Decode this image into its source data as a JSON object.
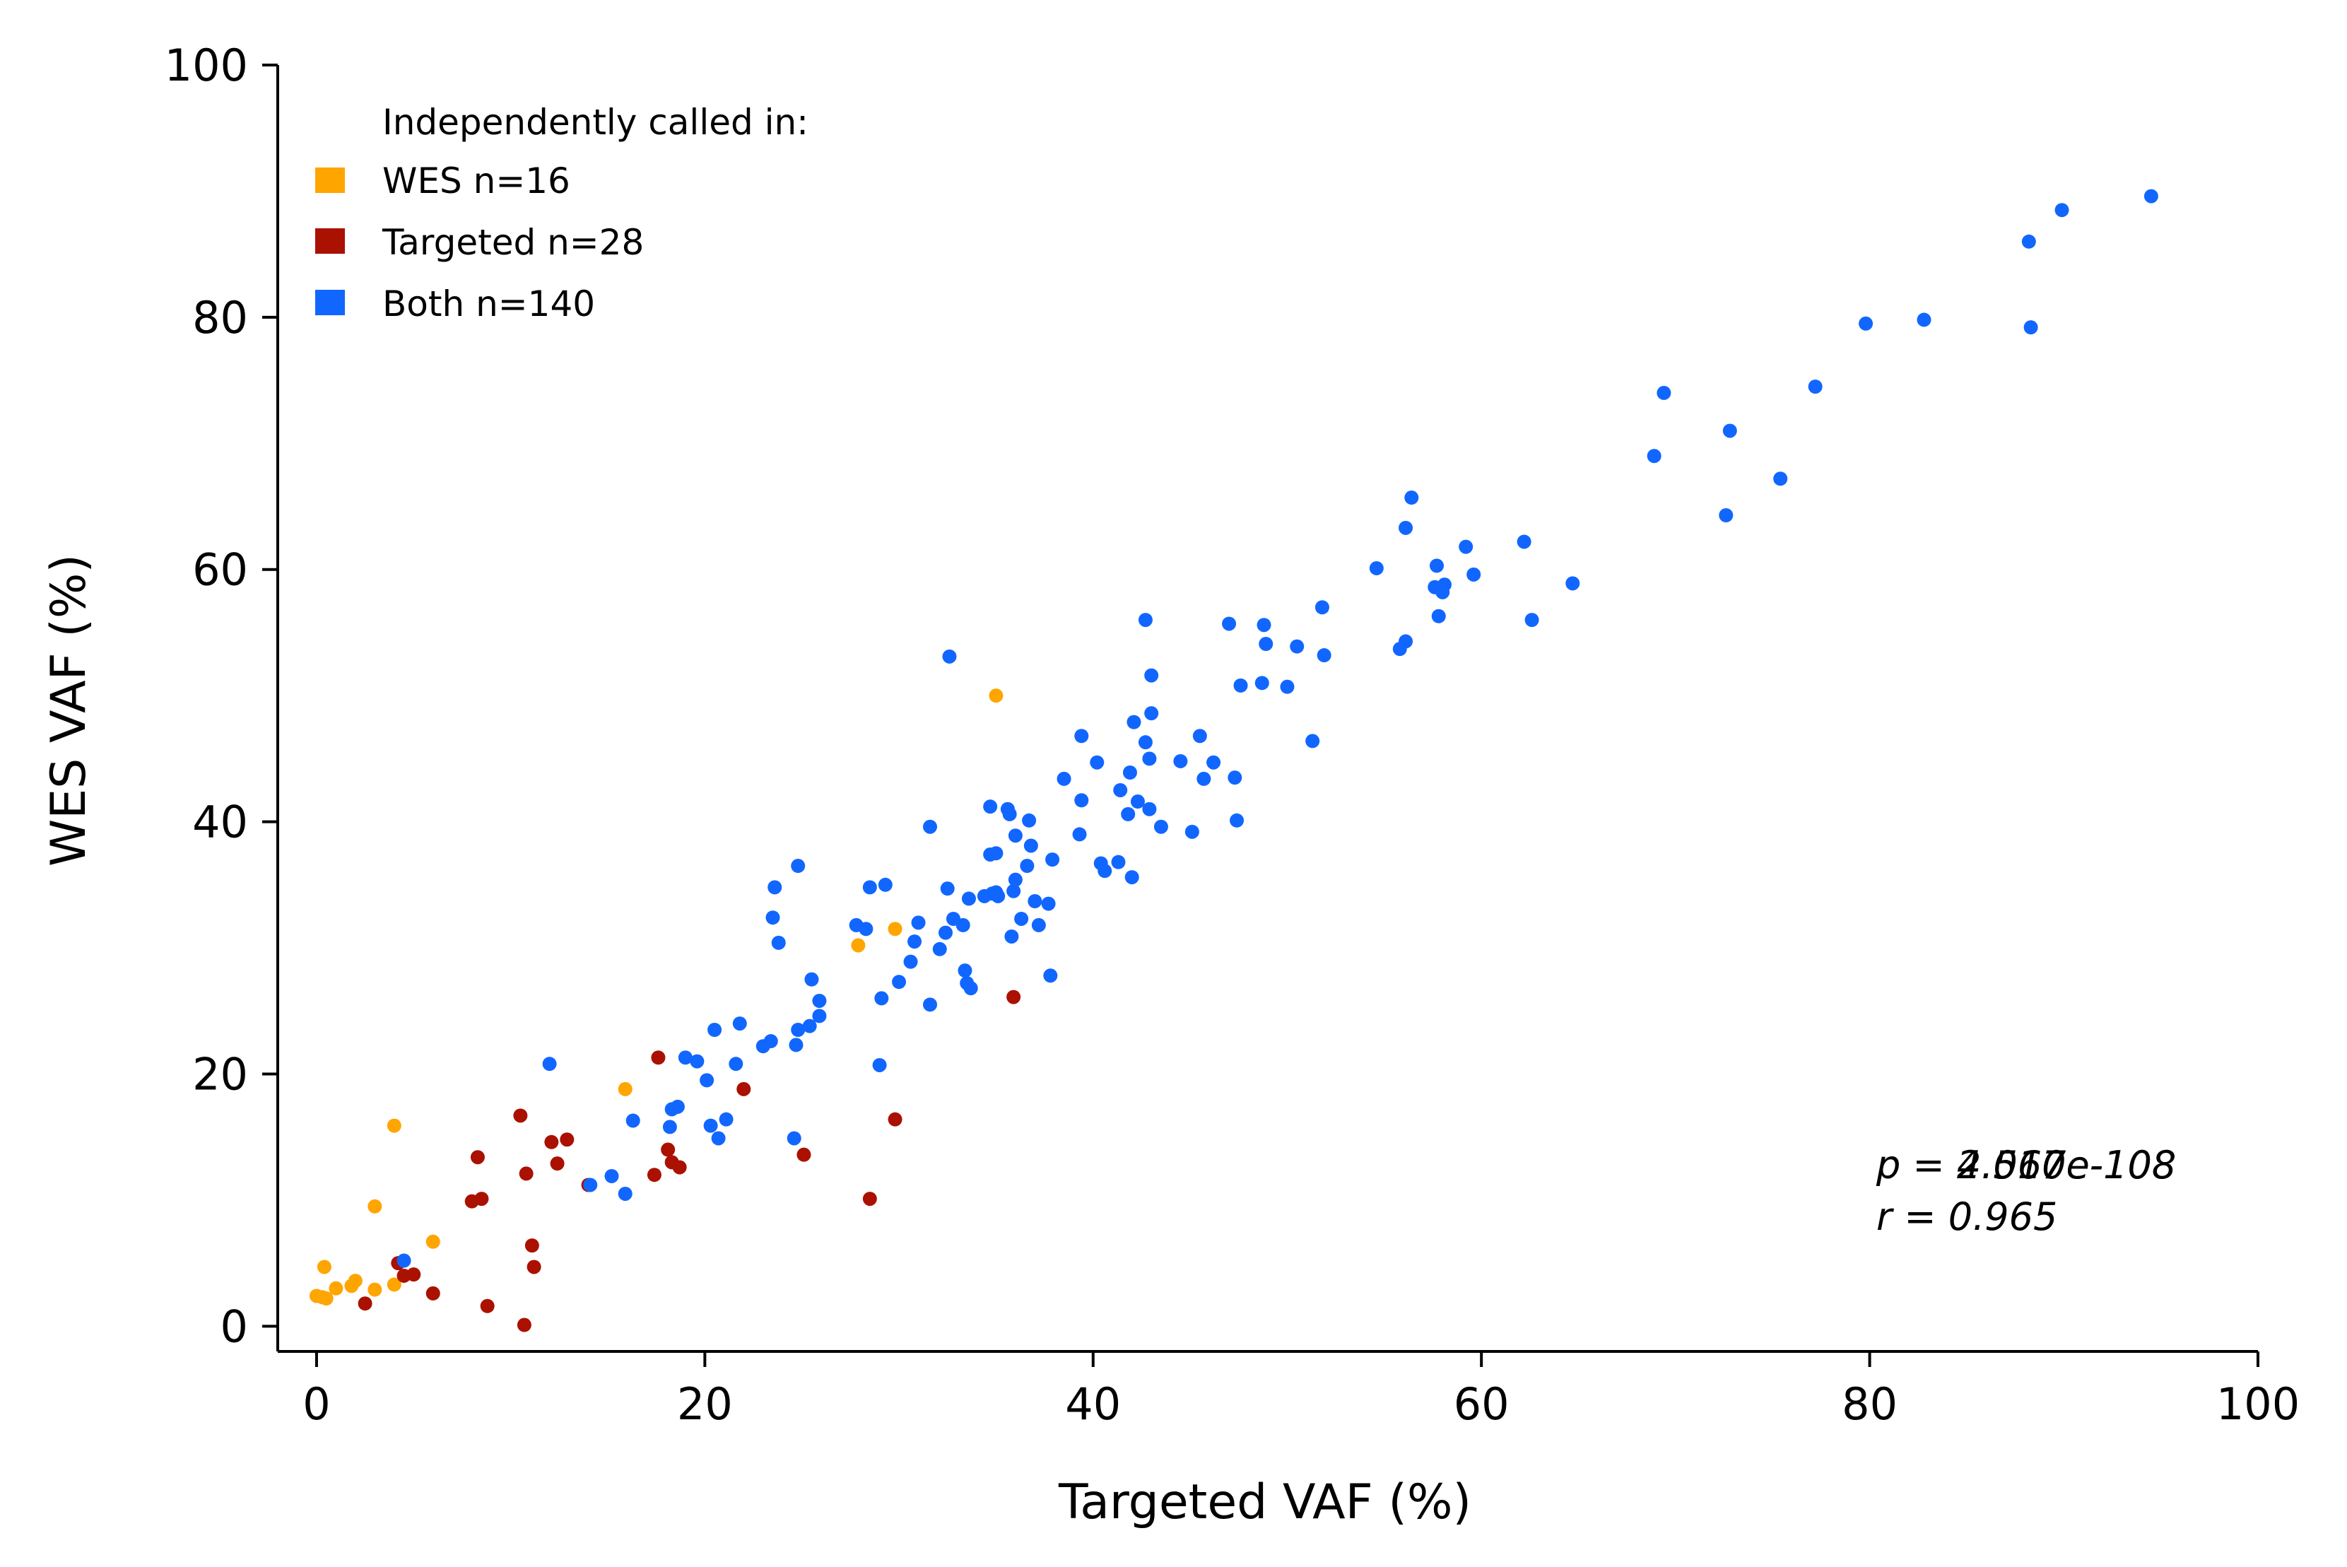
{
  "chart_data": {
    "type": "scatter",
    "title": "",
    "xlabel": "Targeted VAF (%)",
    "ylabel": "WES VAF (%)",
    "xlim": [
      -2,
      100
    ],
    "ylim": [
      -2,
      100
    ],
    "xticks": [
      0,
      20,
      40,
      60,
      80,
      100
    ],
    "yticks": [
      0,
      20,
      40,
      60,
      80,
      100
    ],
    "grid": false,
    "legend": {
      "placement": "top-left",
      "title": "Independently called in:",
      "entries": [
        {
          "label": "WES  n=16",
          "series": "WES"
        },
        {
          "label": "Targeted  n=28",
          "series": "Targeted"
        },
        {
          "label": "Both  n=140",
          "series": "Both"
        }
      ]
    },
    "annotations": {
      "p_overlap_a": "p = 4.567e-108",
      "p_overlap_b": "p = 2.010e-108",
      "r_text": "r = 0.965"
    },
    "colors": {
      "WES": "#ffa500",
      "Targeted": "#aa1100",
      "Both": "#1166ff"
    },
    "series": [
      {
        "name": "WES",
        "points": [
          [
            0.0,
            2.4
          ],
          [
            0.3,
            2.3
          ],
          [
            0.4,
            4.7
          ],
          [
            1.0,
            3.0
          ],
          [
            2.0,
            3.6
          ],
          [
            3.0,
            2.9
          ],
          [
            3.0,
            9.5
          ],
          [
            4.0,
            15.9
          ],
          [
            4.0,
            3.3
          ],
          [
            6.0,
            6.7
          ],
          [
            15.9,
            18.8
          ],
          [
            27.9,
            30.2
          ],
          [
            29.8,
            31.5
          ],
          [
            35.0,
            50.0
          ],
          [
            0.5,
            2.2
          ],
          [
            1.8,
            3.2
          ]
        ]
      },
      {
        "name": "Targeted",
        "points": [
          [
            2.5,
            1.8
          ],
          [
            4.2,
            5.0
          ],
          [
            4.5,
            4.0
          ],
          [
            5.0,
            4.1
          ],
          [
            6.0,
            2.6
          ],
          [
            8.0,
            9.9
          ],
          [
            8.3,
            13.4
          ],
          [
            8.5,
            10.1
          ],
          [
            8.8,
            1.6
          ],
          [
            10.5,
            16.7
          ],
          [
            10.7,
            0.1
          ],
          [
            10.8,
            12.1
          ],
          [
            11.1,
            6.4
          ],
          [
            11.2,
            4.7
          ],
          [
            12.1,
            14.6
          ],
          [
            12.4,
            12.9
          ],
          [
            12.9,
            14.8
          ],
          [
            14.0,
            11.2
          ],
          [
            17.4,
            12.0
          ],
          [
            17.6,
            21.3
          ],
          [
            18.1,
            14.0
          ],
          [
            18.3,
            13.0
          ],
          [
            18.7,
            12.6
          ],
          [
            22.0,
            18.8
          ],
          [
            25.1,
            13.6
          ],
          [
            28.5,
            10.1
          ],
          [
            29.8,
            16.4
          ],
          [
            35.9,
            26.1
          ]
        ]
      },
      {
        "name": "Both",
        "points": [
          [
            4.5,
            5.2
          ],
          [
            12.0,
            20.8
          ],
          [
            14.1,
            11.2
          ],
          [
            15.2,
            11.9
          ],
          [
            15.9,
            10.5
          ],
          [
            16.3,
            16.3
          ],
          [
            18.2,
            15.8
          ],
          [
            18.3,
            17.2
          ],
          [
            18.6,
            17.4
          ],
          [
            19.0,
            21.3
          ],
          [
            19.6,
            21.0
          ],
          [
            20.1,
            19.5
          ],
          [
            20.3,
            15.9
          ],
          [
            20.5,
            23.5
          ],
          [
            20.7,
            14.9
          ],
          [
            21.1,
            16.4
          ],
          [
            21.6,
            20.8
          ],
          [
            21.8,
            24.0
          ],
          [
            23.0,
            22.2
          ],
          [
            23.4,
            22.6
          ],
          [
            23.5,
            32.4
          ],
          [
            23.6,
            34.8
          ],
          [
            23.8,
            30.4
          ],
          [
            24.6,
            14.9
          ],
          [
            24.7,
            22.3
          ],
          [
            24.8,
            23.5
          ],
          [
            24.8,
            36.5
          ],
          [
            25.4,
            23.8
          ],
          [
            25.5,
            27.5
          ],
          [
            25.9,
            24.6
          ],
          [
            25.9,
            25.8
          ],
          [
            27.8,
            31.8
          ],
          [
            28.3,
            31.5
          ],
          [
            28.5,
            34.8
          ],
          [
            29.0,
            20.7
          ],
          [
            29.1,
            26.0
          ],
          [
            29.3,
            35.0
          ],
          [
            30.0,
            27.3
          ],
          [
            30.6,
            28.9
          ],
          [
            30.8,
            30.5
          ],
          [
            31.0,
            32.0
          ],
          [
            31.6,
            25.5
          ],
          [
            31.6,
            39.6
          ],
          [
            32.1,
            29.9
          ],
          [
            32.4,
            31.2
          ],
          [
            32.5,
            34.7
          ],
          [
            32.6,
            53.1
          ],
          [
            32.8,
            32.3
          ],
          [
            33.3,
            31.8
          ],
          [
            33.4,
            28.2
          ],
          [
            33.5,
            27.2
          ],
          [
            33.6,
            33.9
          ],
          [
            33.7,
            26.8
          ],
          [
            34.4,
            34.1
          ],
          [
            34.7,
            37.4
          ],
          [
            34.7,
            41.2
          ],
          [
            34.8,
            34.3
          ],
          [
            35.0,
            34.4
          ],
          [
            35.0,
            37.5
          ],
          [
            35.1,
            34.1
          ],
          [
            35.6,
            41.0
          ],
          [
            35.7,
            40.6
          ],
          [
            35.8,
            30.9
          ],
          [
            35.9,
            34.5
          ],
          [
            36.0,
            35.4
          ],
          [
            36.0,
            38.9
          ],
          [
            36.3,
            32.3
          ],
          [
            36.6,
            36.5
          ],
          [
            36.7,
            40.1
          ],
          [
            36.8,
            38.1
          ],
          [
            37.0,
            33.7
          ],
          [
            37.2,
            31.8
          ],
          [
            37.7,
            33.5
          ],
          [
            37.8,
            27.8
          ],
          [
            37.9,
            37.0
          ],
          [
            38.5,
            43.4
          ],
          [
            39.3,
            39.0
          ],
          [
            39.4,
            46.8
          ],
          [
            39.4,
            41.7
          ],
          [
            40.2,
            44.7
          ],
          [
            40.4,
            36.7
          ],
          [
            40.6,
            36.1
          ],
          [
            41.3,
            36.8
          ],
          [
            41.4,
            42.5
          ],
          [
            41.8,
            40.6
          ],
          [
            41.9,
            43.9
          ],
          [
            42.0,
            35.6
          ],
          [
            42.1,
            47.9
          ],
          [
            42.3,
            41.6
          ],
          [
            42.7,
            56.0
          ],
          [
            42.7,
            46.3
          ],
          [
            42.9,
            41.0
          ],
          [
            42.9,
            45.0
          ],
          [
            43.0,
            48.6
          ],
          [
            43.0,
            51.6
          ],
          [
            43.5,
            39.6
          ],
          [
            44.5,
            44.8
          ],
          [
            45.1,
            39.2
          ],
          [
            45.5,
            46.8
          ],
          [
            45.7,
            43.4
          ],
          [
            46.2,
            44.7
          ],
          [
            47.0,
            55.7
          ],
          [
            47.3,
            43.5
          ],
          [
            47.4,
            40.1
          ],
          [
            47.6,
            50.8
          ],
          [
            48.7,
            51.0
          ],
          [
            48.8,
            55.6
          ],
          [
            48.9,
            54.1
          ],
          [
            50.0,
            50.7
          ],
          [
            50.5,
            53.9
          ],
          [
            51.3,
            46.4
          ],
          [
            51.8,
            57.0
          ],
          [
            51.9,
            53.2
          ],
          [
            54.6,
            60.1
          ],
          [
            55.8,
            53.7
          ],
          [
            56.1,
            54.3
          ],
          [
            56.1,
            63.3
          ],
          [
            56.4,
            65.7
          ],
          [
            57.6,
            58.6
          ],
          [
            57.7,
            60.3
          ],
          [
            57.8,
            56.3
          ],
          [
            58.1,
            58.8
          ],
          [
            59.2,
            61.8
          ],
          [
            59.6,
            59.6
          ],
          [
            62.2,
            62.2
          ],
          [
            62.6,
            56.0
          ],
          [
            64.7,
            58.9
          ],
          [
            68.9,
            69.0
          ],
          [
            69.4,
            74.0
          ],
          [
            72.6,
            64.3
          ],
          [
            72.8,
            71.0
          ],
          [
            75.4,
            67.2
          ],
          [
            77.2,
            74.5
          ],
          [
            79.8,
            79.5
          ],
          [
            82.8,
            79.8
          ],
          [
            88.2,
            86.0
          ],
          [
            88.3,
            79.2
          ],
          [
            89.9,
            88.5
          ],
          [
            94.5,
            89.6
          ],
          [
            58.0,
            58.2
          ]
        ]
      }
    ]
  }
}
